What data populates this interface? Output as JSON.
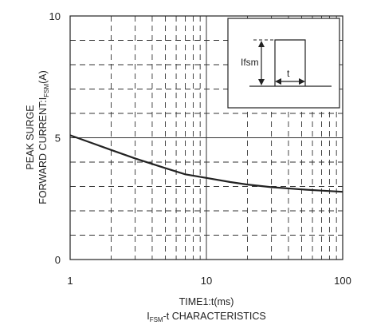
{
  "chart_data": {
    "type": "line",
    "x_scale": "log",
    "xlim": [
      1,
      100
    ],
    "ylim": [
      0,
      10
    ],
    "x_ticks": [
      "1",
      "10",
      "100"
    ],
    "y_ticks": [
      "0",
      "5",
      "10"
    ],
    "grid": true,
    "xlabel": "TIME1:t(ms)",
    "subtitle_main": "I",
    "subtitle_sub": "FSM",
    "subtitle_rest": "-t CHARACTERISTICS",
    "ylabel_line1": "PEAK SURGE",
    "ylabel_line2_main": "FORWARD CURRENT:I",
    "ylabel_line2_sub": "FSM",
    "ylabel_line2_rest": "(A)",
    "series": [
      {
        "x": [
          1,
          1.5,
          2,
          3,
          5,
          7,
          10,
          15,
          20,
          30,
          50,
          70,
          100
        ],
        "y": [
          5.1,
          4.75,
          4.5,
          4.15,
          3.75,
          3.5,
          3.35,
          3.18,
          3.08,
          2.97,
          2.88,
          2.83,
          2.78
        ]
      }
    ],
    "inset": {
      "label_amplitude": "Ifsm",
      "label_width": "t"
    }
  }
}
